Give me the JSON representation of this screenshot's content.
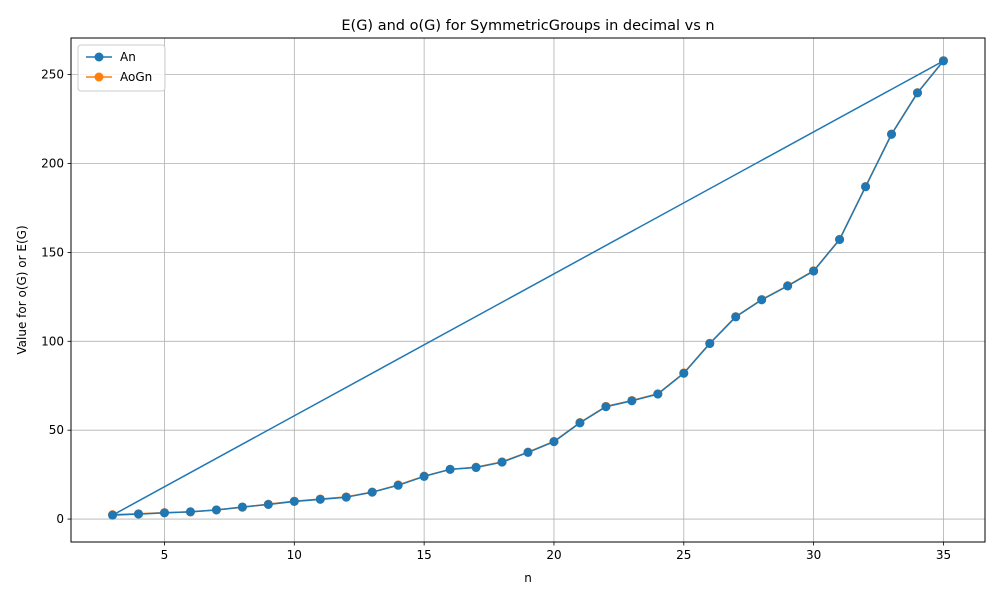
{
  "chart_data": {
    "type": "line",
    "title": "E(G) and o(G) for SymmetricGroups in decimal vs n",
    "xlabel": "n",
    "ylabel": "Value for o(G) or E(G)",
    "xlim": [
      1.4,
      36.6
    ],
    "ylim": [
      -12.9,
      270.6
    ],
    "xticks": [
      5,
      10,
      15,
      20,
      25,
      30,
      35
    ],
    "yticks": [
      0,
      50,
      100,
      150,
      200,
      250
    ],
    "grid": true,
    "legend_position": "top-left",
    "x": [
      3,
      4,
      5,
      6,
      7,
      8,
      9,
      10,
      11,
      12,
      13,
      14,
      15,
      16,
      17,
      18,
      19,
      20,
      21,
      22,
      23,
      24,
      25,
      26,
      27,
      28,
      29,
      30,
      31,
      32,
      33,
      34,
      35
    ],
    "series": [
      {
        "name": "An",
        "color": "#1f77b4",
        "values": [
          2.2,
          2.8,
          3.5,
          4.1,
          5.1,
          6.8,
          8.2,
          9.9,
          11.1,
          12.3,
          15.1,
          19.0,
          24.0,
          28.0,
          29.0,
          32.0,
          37.5,
          43.5,
          54.1,
          63.2,
          66.5,
          70.3,
          82.0,
          98.7,
          113.7,
          123.3,
          131.1,
          139.5,
          157.2,
          186.9,
          216.4,
          239.7,
          257.7
        ],
        "closing_segment": true
      },
      {
        "name": "AoGn",
        "color": "#ff7f0e",
        "values": [
          2.5,
          3.0,
          3.6,
          4.0,
          5.2,
          6.6,
          8.4,
          10.1,
          11.3,
          12.5,
          15.2,
          19.2,
          24.2,
          27.9,
          29.2,
          32.2,
          37.7,
          43.7,
          54.3,
          63.4,
          66.7,
          70.5,
          82.2,
          98.9,
          113.9,
          123.5,
          131.3,
          139.7,
          157.4,
          187.1,
          216.6,
          239.9,
          257.9
        ]
      }
    ]
  }
}
